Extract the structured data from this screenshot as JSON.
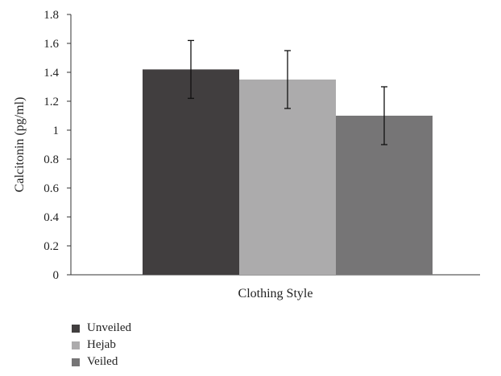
{
  "chart_data": {
    "type": "bar",
    "title": "",
    "xlabel": "Clothing Style",
    "ylabel": "Calcitonin (pg/ml)",
    "ylim": [
      0,
      1.8
    ],
    "yticks": [
      "0",
      "0.2",
      "0.4",
      "0.6",
      "0.8",
      "1",
      "1.2",
      "1.4",
      "1.6",
      "1.8"
    ],
    "grid": false,
    "legend_position": "bottom-left",
    "series": [
      {
        "name": "Unveiled",
        "value": 1.42,
        "error": 0.2,
        "color": "#413e3f"
      },
      {
        "name": "Hejab",
        "value": 1.35,
        "error": 0.2,
        "color": "#acabac"
      },
      {
        "name": "Veiled",
        "value": 1.1,
        "error": 0.2,
        "color": "#767576"
      }
    ]
  }
}
